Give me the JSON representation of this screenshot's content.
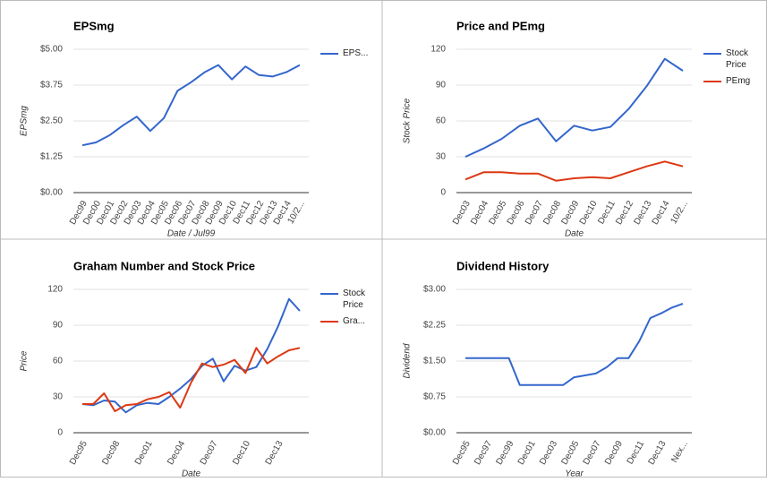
{
  "chart_data": [
    {
      "type": "line",
      "title": "EPSmg",
      "x_label": "Date / Jul99",
      "y_label": "EPSmg",
      "categories": [
        "Dec99",
        "Dec00",
        "Dec01",
        "Dec02",
        "Dec03",
        "Dec04",
        "Dec05",
        "Dec06",
        "Dec07",
        "Dec08",
        "Dec09",
        "Dec10",
        "Dec11",
        "Dec12",
        "Dec13",
        "Dec14",
        "10/2..."
      ],
      "series": [
        {
          "name": "EPS...",
          "color": "#3366cc",
          "values": [
            1.65,
            1.75,
            2.0,
            2.35,
            2.65,
            2.15,
            2.6,
            3.55,
            3.85,
            4.2,
            4.45,
            3.95,
            4.4,
            4.1,
            4.05,
            4.2,
            4.45
          ]
        }
      ],
      "ylim": [
        0,
        5
      ],
      "yticks": [
        {
          "value": 0,
          "label": "$0.00"
        },
        {
          "value": 1.25,
          "label": "$1.25"
        },
        {
          "value": 2.5,
          "label": "$2.50"
        },
        {
          "value": 3.75,
          "label": "$3.75"
        },
        {
          "value": 5,
          "label": "$5.00"
        }
      ],
      "grid": true,
      "legend": "right"
    },
    {
      "type": "line",
      "title": "Price and PEmg",
      "x_label": "Date",
      "y_label": "Stock Price",
      "categories": [
        "Dec03",
        "Dec04",
        "Dec05",
        "Dec06",
        "Dec07",
        "Dec08",
        "Dec09",
        "Dec10",
        "Dec11",
        "Dec12",
        "Dec13",
        "Dec14",
        "10/2..."
      ],
      "series": [
        {
          "name": "Stock Price",
          "color": "#3366cc",
          "values": [
            30,
            37,
            45,
            56,
            62,
            43,
            56,
            52,
            55,
            70,
            89,
            112,
            102
          ]
        },
        {
          "name": "PEmg",
          "color": "#dc3912",
          "values": [
            11,
            17,
            17,
            16,
            16,
            10,
            12,
            13,
            12,
            17,
            22,
            26,
            22
          ]
        }
      ],
      "ylim": [
        0,
        120
      ],
      "yticks": [
        0,
        30,
        60,
        90,
        120
      ],
      "grid": true,
      "legend": "right"
    },
    {
      "type": "line",
      "title": "Graham Number and Stock Price",
      "x_label": "Date",
      "y_label": "Price",
      "categories": [
        "Dec95",
        null,
        null,
        "Dec98",
        null,
        null,
        "Dec01",
        null,
        null,
        "Dec04",
        null,
        null,
        "Dec07",
        null,
        null,
        "Dec10",
        null,
        null,
        "Dec13",
        null,
        null
      ],
      "series": [
        {
          "name": "Stock Price",
          "color": "#3366cc",
          "values": [
            24,
            23,
            27,
            26,
            17,
            23,
            25,
            24,
            30,
            37,
            45,
            56,
            62,
            43,
            56,
            52,
            55,
            70,
            89,
            112,
            102
          ]
        },
        {
          "name": "Gra...",
          "color": "#dc3912",
          "values": [
            24,
            24,
            33,
            18,
            23,
            24,
            28,
            30,
            34,
            21,
            42,
            58,
            55,
            57,
            61,
            50,
            71,
            58,
            64,
            69,
            71
          ]
        }
      ],
      "ylim": [
        0,
        120
      ],
      "yticks": [
        0,
        30,
        60,
        90,
        120
      ],
      "grid": true,
      "legend": "right"
    },
    {
      "type": "line",
      "title": "Dividend History",
      "x_label": "Year",
      "y_label": "Dividend",
      "categories": [
        "Dec95",
        null,
        "Dec97",
        null,
        "Dec99",
        null,
        "Dec01",
        null,
        "Dec03",
        null,
        "Dec05",
        null,
        "Dec07",
        null,
        "Dec09",
        null,
        "Dec11",
        null,
        "Dec13",
        null,
        "Nex..."
      ],
      "values": [
        1.56,
        1.56,
        1.56,
        1.56,
        1.56,
        1.0,
        1.0,
        1.0,
        1.0,
        1.0,
        1.16,
        1.2,
        1.24,
        1.37,
        1.56,
        1.56,
        1.92,
        2.4,
        2.5,
        2.62,
        2.7
      ],
      "color": "#3366cc",
      "ylim": [
        0,
        3
      ],
      "yticks": [
        {
          "value": 0,
          "label": "$0.00"
        },
        {
          "value": 0.75,
          "label": "$0.75"
        },
        {
          "value": 1.5,
          "label": "$1.50"
        },
        {
          "value": 2.25,
          "label": "$2.25"
        },
        {
          "value": 3,
          "label": "$3.00"
        }
      ],
      "grid": true
    }
  ]
}
